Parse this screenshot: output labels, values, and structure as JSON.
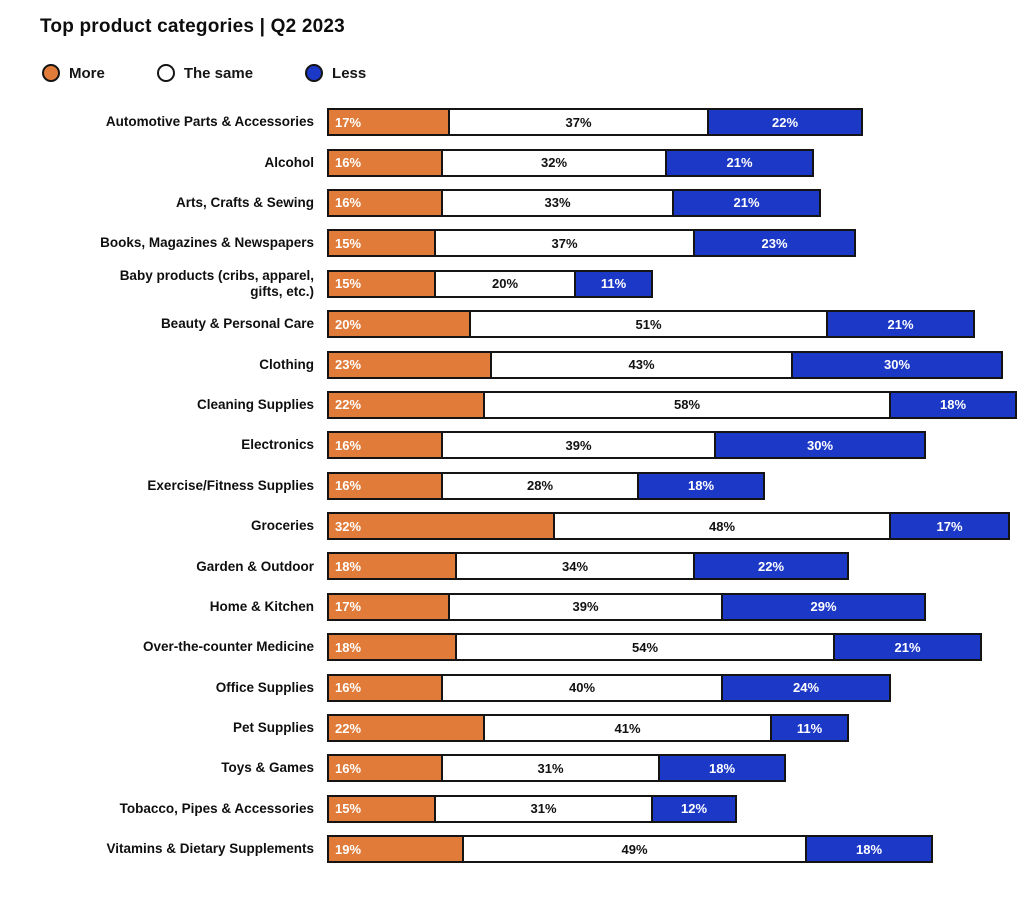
{
  "title": "Top product categories | Q2 2023",
  "colors": {
    "more": "#E07B39",
    "same": "#FFFFFF",
    "less": "#1C38C7",
    "border": "#141414"
  },
  "legend": [
    {
      "label": "More",
      "color": "#E07B39"
    },
    {
      "label": "The same",
      "color": "#FFFFFF"
    },
    {
      "label": "Less",
      "color": "#1C38C7"
    }
  ],
  "chart_data": {
    "type": "bar",
    "stacked": true,
    "orientation": "horizontal",
    "title": "Top product categories | Q2 2023",
    "xlabel": "",
    "ylabel": "",
    "xlim": [
      0,
      100
    ],
    "value_suffix": "%",
    "grid": false,
    "legend_position": "top",
    "categories": [
      "Automotive Parts & Accessories",
      "Alcohol",
      "Arts, Crafts & Sewing",
      "Books, Magazines & Newspapers",
      "Baby products (cribs, apparel,\ngifts, etc.)",
      "Beauty & Personal Care",
      "Clothing",
      "Cleaning Supplies",
      "Electronics",
      "Exercise/Fitness Supplies",
      "Groceries",
      "Garden & Outdoor",
      "Home & Kitchen",
      "Over-the-counter Medicine",
      "Office Supplies",
      "Pet Supplies",
      "Toys & Games",
      "Tobacco, Pipes & Accessories",
      "Vitamins & Dietary Supplements"
    ],
    "series": [
      {
        "name": "More",
        "color": "#E07B39",
        "values": [
          17,
          16,
          16,
          15,
          15,
          20,
          23,
          22,
          16,
          16,
          32,
          18,
          17,
          18,
          16,
          22,
          16,
          15,
          19
        ]
      },
      {
        "name": "The same",
        "color": "#FFFFFF",
        "values": [
          37,
          32,
          33,
          37,
          20,
          51,
          43,
          58,
          39,
          28,
          48,
          34,
          39,
          54,
          40,
          41,
          31,
          31,
          49
        ]
      },
      {
        "name": "Less",
        "color": "#1C38C7",
        "values": [
          22,
          21,
          21,
          23,
          11,
          21,
          30,
          18,
          30,
          18,
          17,
          22,
          29,
          21,
          24,
          11,
          18,
          12,
          18
        ]
      }
    ]
  }
}
